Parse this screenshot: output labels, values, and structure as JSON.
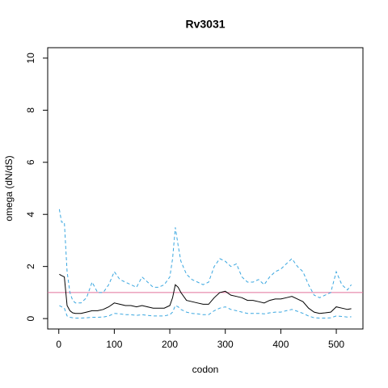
{
  "chart_data": {
    "type": "line",
    "title": "Rv3031",
    "xlabel": "codon",
    "ylabel": "omega (dN/dS)",
    "x": [
      1,
      5,
      10,
      15,
      20,
      25,
      30,
      40,
      50,
      60,
      70,
      80,
      90,
      100,
      110,
      120,
      130,
      140,
      150,
      160,
      170,
      180,
      190,
      200,
      205,
      210,
      215,
      220,
      230,
      240,
      250,
      260,
      270,
      280,
      290,
      300,
      310,
      320,
      330,
      340,
      350,
      360,
      370,
      380,
      390,
      400,
      410,
      420,
      430,
      440,
      450,
      460,
      470,
      480,
      490,
      500,
      510,
      520,
      527
    ],
    "series": [
      {
        "color": "#000000",
        "dashed": false,
        "values": [
          1.7,
          1.65,
          1.6,
          0.5,
          0.3,
          0.22,
          0.2,
          0.2,
          0.25,
          0.3,
          0.3,
          0.35,
          0.45,
          0.6,
          0.55,
          0.5,
          0.5,
          0.45,
          0.5,
          0.45,
          0.4,
          0.4,
          0.4,
          0.5,
          0.8,
          1.3,
          1.2,
          1.0,
          0.7,
          0.65,
          0.6,
          0.55,
          0.55,
          0.8,
          1.0,
          1.05,
          0.9,
          0.85,
          0.8,
          0.7,
          0.7,
          0.65,
          0.6,
          0.7,
          0.75,
          0.75,
          0.8,
          0.85,
          0.75,
          0.65,
          0.4,
          0.25,
          0.2,
          0.22,
          0.25,
          0.45,
          0.4,
          0.35,
          0.38
        ]
      },
      {
        "color": "#3aa7e0",
        "dashed": true,
        "values": [
          4.2,
          3.7,
          3.7,
          1.8,
          1.0,
          0.7,
          0.6,
          0.6,
          0.8,
          1.4,
          1.0,
          1.0,
          1.3,
          1.8,
          1.5,
          1.4,
          1.3,
          1.2,
          1.6,
          1.4,
          1.2,
          1.2,
          1.3,
          1.6,
          2.3,
          3.5,
          2.8,
          2.2,
          1.7,
          1.5,
          1.4,
          1.3,
          1.4,
          2.0,
          2.3,
          2.2,
          2.0,
          2.1,
          1.6,
          1.4,
          1.4,
          1.5,
          1.3,
          1.6,
          1.8,
          1.9,
          2.1,
          2.3,
          2.0,
          1.8,
          1.3,
          0.9,
          0.8,
          0.9,
          1.0,
          1.8,
          1.3,
          1.1,
          1.3
        ]
      },
      {
        "color": "#3aa7e0",
        "dashed": true,
        "values": [
          0.5,
          0.45,
          0.4,
          0.1,
          0.05,
          0.03,
          0.02,
          0.02,
          0.03,
          0.05,
          0.05,
          0.06,
          0.1,
          0.2,
          0.18,
          0.15,
          0.15,
          0.12,
          0.15,
          0.12,
          0.1,
          0.1,
          0.1,
          0.15,
          0.25,
          0.5,
          0.45,
          0.35,
          0.25,
          0.2,
          0.18,
          0.15,
          0.15,
          0.3,
          0.4,
          0.45,
          0.35,
          0.3,
          0.25,
          0.2,
          0.2,
          0.2,
          0.18,
          0.22,
          0.25,
          0.25,
          0.3,
          0.35,
          0.28,
          0.2,
          0.1,
          0.03,
          0.02,
          0.02,
          0.03,
          0.1,
          0.08,
          0.06,
          0.07
        ]
      }
    ],
    "hline": {
      "value": 1,
      "color": "#e0709a"
    },
    "xlim": [
      -20,
      548
    ],
    "xticks": [
      0,
      100,
      200,
      300,
      400,
      500
    ],
    "ylim": [
      -0.4,
      10.4
    ],
    "yticks": [
      0,
      2,
      4,
      6,
      8,
      10
    ]
  }
}
